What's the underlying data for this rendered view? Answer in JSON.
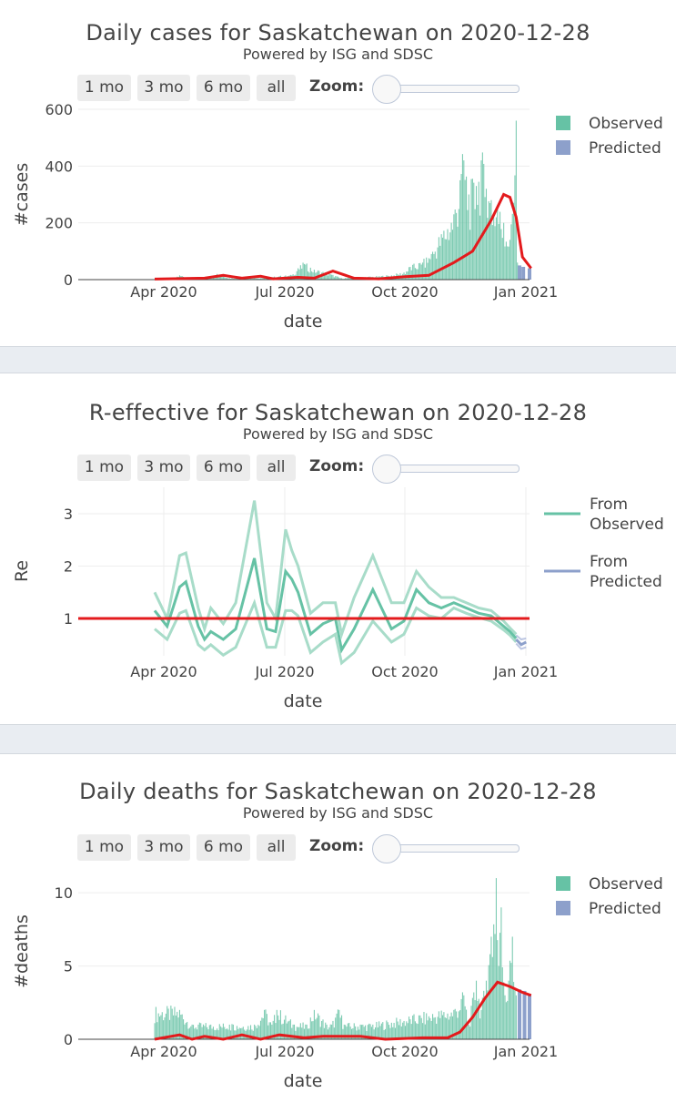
{
  "range_buttons": [
    "1 mo",
    "3 mo",
    "6 mo",
    "all"
  ],
  "zoom_label": "Zoom:",
  "colors": {
    "observed": "#66c2a5",
    "predicted": "#8da0cb",
    "fit": "#e31a1c",
    "re_band": "#a8dcc9",
    "re_pred_band": "#bcc6e2"
  },
  "panels": [
    {
      "title": "Daily cases for Saskatchewan on 2020-12-28",
      "subtitle": "Powered by ISG and SDSC"
    },
    {
      "title": "R-effective for Saskatchewan on 2020-12-28",
      "subtitle": "Powered by ISG and SDSC"
    },
    {
      "title": "Daily deaths for Saskatchewan on 2020-12-28",
      "subtitle": "Powered by ISG and SDSC"
    }
  ],
  "chart_data": [
    {
      "type": "bar",
      "title": "Daily cases for Saskatchewan on 2020-12-28",
      "subtitle": "Powered by ISG and SDSC",
      "xlabel": "date",
      "ylabel": "#cases",
      "x_ticks": [
        "Apr 2020",
        "Jul 2020",
        "Oct 2020",
        "Jan 2021"
      ],
      "y_ticks": [
        "0",
        "200",
        "400",
        "600"
      ],
      "ylim": [
        0,
        600
      ],
      "xlim": [
        "2020-01-15",
        "2021-01-05"
      ],
      "legend": [
        "Observed",
        "Predicted"
      ],
      "legend_position": "top-right",
      "observed_start": "2020-03-12",
      "predicted_start": "2020-12-29",
      "observed_daily_approx": [
        [
          3,
          2
        ],
        [
          15,
          5
        ],
        [
          20,
          15
        ],
        [
          28,
          8
        ],
        [
          40,
          5
        ],
        [
          50,
          20
        ],
        [
          60,
          5
        ],
        [
          75,
          8
        ],
        [
          90,
          6
        ],
        [
          100,
          12
        ],
        [
          110,
          15
        ],
        [
          115,
          40
        ],
        [
          120,
          55
        ],
        [
          128,
          35
        ],
        [
          140,
          20
        ],
        [
          150,
          5
        ],
        [
          165,
          8
        ],
        [
          180,
          12
        ],
        [
          190,
          15
        ],
        [
          200,
          25
        ],
        [
          205,
          45
        ],
        [
          215,
          60
        ],
        [
          222,
          90
        ],
        [
          230,
          160
        ],
        [
          240,
          230
        ],
        [
          245,
          350
        ],
        [
          248,
          420
        ],
        [
          252,
          300
        ],
        [
          258,
          330
        ],
        [
          262,
          420
        ],
        [
          266,
          320
        ],
        [
          270,
          280
        ],
        [
          275,
          250
        ],
        [
          280,
          200
        ],
        [
          285,
          140
        ],
        [
          290,
          560
        ],
        [
          291,
          60
        ]
      ],
      "predicted_daily_approx": [
        [
          292,
          50
        ],
        [
          295,
          45
        ],
        [
          300,
          40
        ]
      ],
      "fit_curve_approx": [
        [
          0,
          2
        ],
        [
          40,
          5
        ],
        [
          55,
          15
        ],
        [
          70,
          5
        ],
        [
          85,
          12
        ],
        [
          95,
          3
        ],
        [
          115,
          8
        ],
        [
          128,
          5
        ],
        [
          143,
          30
        ],
        [
          160,
          5
        ],
        [
          180,
          3
        ],
        [
          200,
          10
        ],
        [
          220,
          15
        ],
        [
          240,
          60
        ],
        [
          255,
          100
        ],
        [
          270,
          210
        ],
        [
          280,
          300
        ],
        [
          285,
          290
        ],
        [
          290,
          220
        ],
        [
          295,
          80
        ],
        [
          302,
          40
        ]
      ]
    },
    {
      "type": "line",
      "title": "R-effective for Saskatchewan on 2020-12-28",
      "subtitle": "Powered by ISG and SDSC",
      "xlabel": "date",
      "ylabel": "Re",
      "x_ticks": [
        "Apr 2020",
        "Jul 2020",
        "Oct 2020",
        "Jan 2021"
      ],
      "y_ticks": [
        "1",
        "2",
        "3"
      ],
      "ylim": [
        0.2,
        3.5
      ],
      "threshold": 1,
      "legend": [
        "From Observed",
        "From Predicted"
      ],
      "legend_position": "top-right",
      "re_observed_approx": [
        [
          0,
          1.15
        ],
        [
          10,
          0.85
        ],
        [
          20,
          1.6
        ],
        [
          25,
          1.7
        ],
        [
          35,
          0.85
        ],
        [
          40,
          0.6
        ],
        [
          45,
          0.75
        ],
        [
          55,
          0.6
        ],
        [
          65,
          0.8
        ],
        [
          80,
          2.15
        ],
        [
          90,
          0.8
        ],
        [
          97,
          0.75
        ],
        [
          105,
          1.9
        ],
        [
          110,
          1.75
        ],
        [
          115,
          1.5
        ],
        [
          125,
          0.7
        ],
        [
          135,
          0.9
        ],
        [
          145,
          1.0
        ],
        [
          150,
          0.4
        ],
        [
          160,
          0.8
        ],
        [
          175,
          1.55
        ],
        [
          190,
          0.8
        ],
        [
          200,
          0.95
        ],
        [
          210,
          1.55
        ],
        [
          220,
          1.3
        ],
        [
          230,
          1.2
        ],
        [
          240,
          1.3
        ],
        [
          250,
          1.2
        ],
        [
          260,
          1.1
        ],
        [
          270,
          1.05
        ],
        [
          280,
          0.85
        ],
        [
          285,
          0.75
        ],
        [
          290,
          0.62
        ]
      ],
      "re_upper_approx": [
        [
          0,
          1.5
        ],
        [
          10,
          1.0
        ],
        [
          20,
          2.2
        ],
        [
          25,
          2.25
        ],
        [
          35,
          1.2
        ],
        [
          40,
          0.8
        ],
        [
          45,
          1.2
        ],
        [
          55,
          0.9
        ],
        [
          65,
          1.3
        ],
        [
          80,
          3.25
        ],
        [
          90,
          1.3
        ],
        [
          97,
          1.0
        ],
        [
          105,
          2.7
        ],
        [
          110,
          2.3
        ],
        [
          115,
          2.0
        ],
        [
          125,
          1.1
        ],
        [
          135,
          1.3
        ],
        [
          145,
          1.3
        ],
        [
          150,
          0.7
        ],
        [
          160,
          1.4
        ],
        [
          175,
          2.2
        ],
        [
          190,
          1.3
        ],
        [
          200,
          1.3
        ],
        [
          210,
          1.9
        ],
        [
          220,
          1.6
        ],
        [
          230,
          1.4
        ],
        [
          240,
          1.4
        ],
        [
          250,
          1.3
        ],
        [
          260,
          1.2
        ],
        [
          270,
          1.15
        ],
        [
          280,
          0.95
        ],
        [
          285,
          0.82
        ],
        [
          290,
          0.7
        ]
      ],
      "re_lower_approx": [
        [
          0,
          0.8
        ],
        [
          10,
          0.6
        ],
        [
          20,
          1.1
        ],
        [
          25,
          1.15
        ],
        [
          35,
          0.5
        ],
        [
          40,
          0.4
        ],
        [
          45,
          0.5
        ],
        [
          55,
          0.3
        ],
        [
          65,
          0.45
        ],
        [
          80,
          1.3
        ],
        [
          90,
          0.45
        ],
        [
          97,
          0.45
        ],
        [
          105,
          1.15
        ],
        [
          110,
          1.15
        ],
        [
          115,
          1.05
        ],
        [
          125,
          0.35
        ],
        [
          135,
          0.55
        ],
        [
          145,
          0.7
        ],
        [
          150,
          0.15
        ],
        [
          160,
          0.35
        ],
        [
          175,
          0.95
        ],
        [
          190,
          0.55
        ],
        [
          200,
          0.7
        ],
        [
          210,
          1.2
        ],
        [
          220,
          1.05
        ],
        [
          230,
          1.0
        ],
        [
          240,
          1.2
        ],
        [
          250,
          1.1
        ],
        [
          260,
          1.02
        ],
        [
          270,
          0.95
        ],
        [
          280,
          0.78
        ],
        [
          285,
          0.68
        ],
        [
          290,
          0.55
        ]
      ],
      "re_predicted_approx": [
        [
          290,
          0.6
        ],
        [
          294,
          0.5
        ],
        [
          298,
          0.55
        ]
      ],
      "re_predicted_upper_approx": [
        [
          290,
          0.68
        ],
        [
          294,
          0.6
        ],
        [
          298,
          0.62
        ]
      ],
      "re_predicted_lower_approx": [
        [
          290,
          0.52
        ],
        [
          294,
          0.42
        ],
        [
          298,
          0.45
        ]
      ]
    },
    {
      "type": "bar",
      "title": "Daily deaths for Saskatchewan on 2020-12-28",
      "subtitle": "Powered by ISG and SDSC",
      "xlabel": "date",
      "ylabel": "#deaths",
      "x_ticks": [
        "Apr 2020",
        "Jul 2020",
        "Oct 2020",
        "Jan 2021"
      ],
      "y_ticks": [
        "0",
        "5",
        "10"
      ],
      "ylim": [
        0,
        12
      ],
      "legend": [
        "Observed",
        "Predicted"
      ],
      "legend_position": "top-right",
      "observed_daily_approx": [
        [
          20,
          2
        ],
        [
          30,
          1
        ],
        [
          35,
          1
        ],
        [
          45,
          1
        ],
        [
          60,
          1
        ],
        [
          63,
          1
        ],
        [
          80,
          1
        ],
        [
          88,
          2
        ],
        [
          94,
          1
        ],
        [
          98,
          2
        ],
        [
          112,
          1
        ],
        [
          122,
          1
        ],
        [
          128,
          2
        ],
        [
          138,
          1
        ],
        [
          142,
          1
        ],
        [
          148,
          2
        ],
        [
          152,
          1
        ],
        [
          165,
          1
        ],
        [
          175,
          1
        ],
        [
          240,
          2
        ],
        [
          248,
          3
        ],
        [
          252,
          1
        ],
        [
          258,
          4
        ],
        [
          262,
          2
        ],
        [
          266,
          4
        ],
        [
          270,
          7
        ],
        [
          274,
          11
        ],
        [
          276,
          5
        ],
        [
          278,
          9
        ],
        [
          281,
          3
        ],
        [
          284,
          4
        ],
        [
          287,
          7
        ],
        [
          290,
          3
        ]
      ],
      "predicted_daily_approx": [
        [
          292,
          3.4
        ],
        [
          296,
          3.3
        ],
        [
          300,
          3.1
        ]
      ],
      "fit_curve_approx": [
        [
          0,
          0
        ],
        [
          20,
          0.3
        ],
        [
          30,
          0
        ],
        [
          40,
          0.2
        ],
        [
          55,
          0
        ],
        [
          70,
          0.3
        ],
        [
          85,
          0
        ],
        [
          100,
          0.3
        ],
        [
          120,
          0.1
        ],
        [
          135,
          0.2
        ],
        [
          150,
          0.2
        ],
        [
          165,
          0.2
        ],
        [
          185,
          0
        ],
        [
          215,
          0.1
        ],
        [
          235,
          0.1
        ],
        [
          245,
          0.5
        ],
        [
          255,
          1.5
        ],
        [
          265,
          2.8
        ],
        [
          275,
          3.9
        ],
        [
          285,
          3.6
        ],
        [
          295,
          3.2
        ],
        [
          302,
          3.0
        ]
      ]
    }
  ]
}
